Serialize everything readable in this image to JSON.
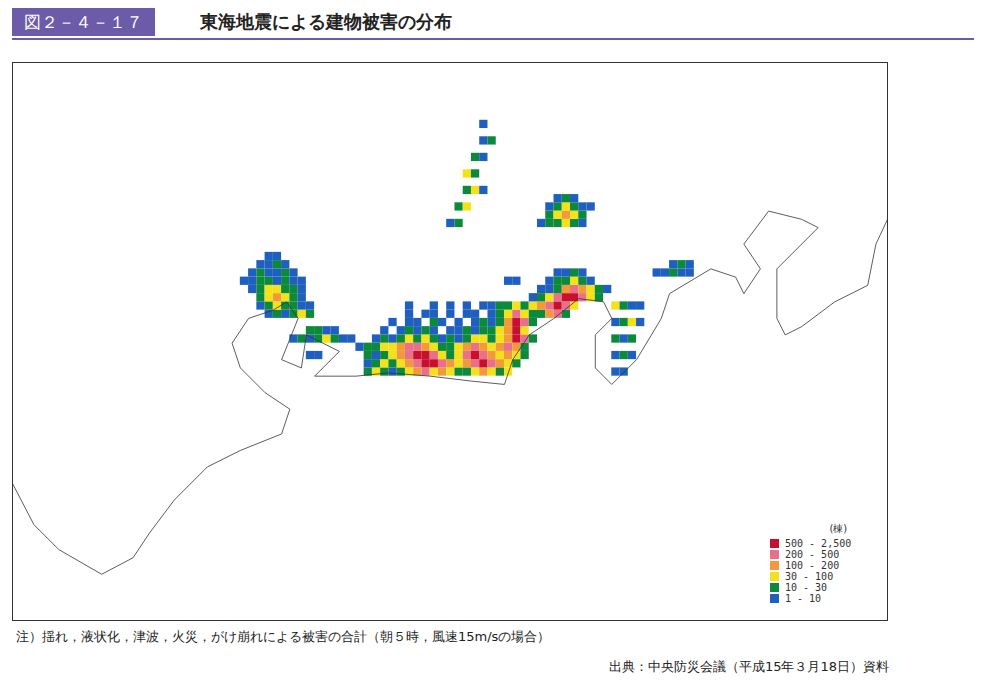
{
  "chart_data": {
    "type": "heatmap",
    "figure_number": "図２－４－１７",
    "title": "東海地震による建物被害の分布",
    "note": "注）揺れ，液状化，津波，火災，がけ崩れによる被害の合計（朝５時，風速15m/sの場合）",
    "source": "出典：中央防災会議（平成15年３月18日）資料",
    "xlim": [
      135.22,
      140.52
    ],
    "ylim": [
      33.17,
      36.55
    ],
    "tick_labels": false,
    "cell_size": 0.05,
    "color_bar": {
      "unit": "(棟)",
      "classes": [
        {
          "min": 500,
          "max": 2500,
          "label": "500 - 2,500",
          "color": "#c8102e"
        },
        {
          "min": 200,
          "max": 500,
          "label": "200 - 500",
          "color": "#e8708a"
        },
        {
          "min": 100,
          "max": 200,
          "label": "100 - 200",
          "color": "#f29a3a"
        },
        {
          "min": 30,
          "max": 100,
          "label": "30 - 100",
          "color": "#f5e11a"
        },
        {
          "min": 10,
          "max": 30,
          "label": "10 - 30",
          "color": "#0a8a3a"
        },
        {
          "min": 1,
          "max": 10,
          "label": "1 - 10",
          "color": "#1f5fbf"
        }
      ]
    },
    "cells": [
      {
        "lat": 34.65,
        "lon": 137.35,
        "values": [
          20,
          60,
          20,
          5,
          20,
          60,
          150,
          300,
          60,
          150,
          60,
          20,
          20,
          60,
          150,
          60,
          20,
          60
        ]
      },
      {
        "lat": 34.7,
        "lon": 137.35,
        "values": [
          5,
          20,
          60,
          20,
          60,
          150,
          300,
          1000,
          1000,
          300,
          150,
          60,
          150,
          300,
          1000,
          300,
          150,
          60,
          20
        ]
      },
      {
        "lat": 34.75,
        "lon": 137.35,
        "values": [
          20,
          5,
          20,
          60,
          150,
          300,
          1000,
          1000,
          300,
          60,
          20,
          60,
          300,
          1000,
          300,
          150,
          60,
          150,
          60,
          20
        ]
      },
      {
        "lat": 34.8,
        "lon": 137.3,
        "values": [
          5,
          20,
          20,
          60,
          60,
          150,
          300,
          300,
          150,
          60,
          20,
          20,
          60,
          150,
          300,
          150,
          60,
          150,
          300,
          150,
          20
        ]
      },
      {
        "lat": 34.85,
        "lon": 137.4,
        "values": [
          5,
          20,
          5,
          20,
          60,
          20,
          60,
          20,
          5,
          20,
          5,
          20,
          60,
          60,
          20,
          60,
          150,
          1000,
          300,
          20
        ]
      },
      {
        "lat": 34.9,
        "lon": 137.45,
        "values": [
          5,
          null,
          5,
          20,
          5,
          20,
          5,
          null,
          5,
          5,
          20,
          5,
          20,
          20,
          60,
          150,
          1000,
          60
        ]
      },
      {
        "lat": 34.95,
        "lon": 137.5,
        "values": [
          5,
          null,
          5,
          5,
          null,
          20,
          5,
          null,
          5,
          null,
          5,
          20,
          5,
          20,
          150,
          1000,
          300,
          20
        ]
      },
      {
        "lat": 35.0,
        "lon": 137.55,
        "values": [
          null,
          5,
          null,
          5,
          5,
          null,
          5,
          null,
          5,
          5,
          null,
          5,
          20,
          60,
          300,
          60,
          20,
          20,
          150,
          300,
          20
        ]
      },
      {
        "lat": 35.05,
        "lon": 137.6,
        "values": [
          5,
          null,
          null,
          5,
          null,
          5,
          null,
          5,
          null,
          5,
          5,
          20,
          20,
          60,
          20,
          60,
          150,
          300,
          1000,
          300,
          60
        ]
      },
      {
        "lat": 35.1,
        "lon": 138.35,
        "values": [
          5,
          20,
          60,
          300,
          1000,
          1000,
          300,
          60,
          20
        ]
      },
      {
        "lat": 35.15,
        "lon": 138.4,
        "values": [
          5,
          5,
          20,
          150,
          300,
          150,
          60,
          20,
          5
        ]
      },
      {
        "lat": 35.2,
        "lon": 138.45,
        "values": [
          5,
          20,
          20,
          60,
          20,
          5
        ]
      },
      {
        "lat": 35.25,
        "lon": 138.5,
        "values": [
          5,
          5,
          20,
          5
        ]
      },
      {
        "lat": 35.2,
        "lon": 138.2,
        "values": [
          5,
          5
        ]
      },
      {
        "lat": 34.65,
        "lon": 138.85,
        "values": [
          5,
          5
        ]
      },
      {
        "lat": 34.75,
        "lon": 138.85,
        "values": [
          5,
          20,
          5
        ]
      },
      {
        "lat": 34.85,
        "lon": 138.85,
        "values": [
          20,
          5,
          20
        ]
      },
      {
        "lat": 34.95,
        "lon": 138.85,
        "values": [
          5,
          20,
          60,
          5
        ]
      },
      {
        "lat": 35.05,
        "lon": 138.85,
        "values": [
          60,
          20,
          5,
          5
        ]
      },
      {
        "lat": 35.25,
        "lon": 139.1,
        "values": [
          5,
          5,
          20,
          5,
          5
        ]
      },
      {
        "lat": 35.3,
        "lon": 139.2,
        "values": [
          5,
          20,
          5
        ]
      },
      {
        "lat": 35.55,
        "lon": 138.4,
        "values": [
          5,
          20,
          20,
          60,
          20,
          5
        ]
      },
      {
        "lat": 35.6,
        "lon": 138.45,
        "values": [
          20,
          60,
          150,
          60,
          20
        ]
      },
      {
        "lat": 35.65,
        "lon": 138.45,
        "values": [
          5,
          20,
          60,
          20,
          5,
          5
        ]
      },
      {
        "lat": 35.7,
        "lon": 138.5,
        "values": [
          5,
          20,
          5
        ]
      },
      {
        "lat": 35.55,
        "lon": 137.85,
        "values": [
          5,
          20
        ]
      },
      {
        "lat": 35.65,
        "lon": 137.9,
        "values": [
          20,
          60
        ]
      },
      {
        "lat": 35.75,
        "lon": 137.95,
        "values": [
          20,
          60,
          5
        ]
      },
      {
        "lat": 35.85,
        "lon": 137.95,
        "values": [
          60,
          20
        ]
      },
      {
        "lat": 35.95,
        "lon": 138.0,
        "values": [
          20,
          5
        ]
      },
      {
        "lat": 36.05,
        "lon": 138.05,
        "values": [
          5,
          20
        ]
      },
      {
        "lat": 36.15,
        "lon": 138.05,
        "values": [
          5
        ]
      },
      {
        "lat": 35.0,
        "lon": 136.75,
        "values": [
          5,
          20,
          5,
          20,
          60,
          20
        ]
      },
      {
        "lat": 35.05,
        "lon": 136.7,
        "values": [
          5,
          20,
          60,
          20,
          20,
          5,
          5
        ]
      },
      {
        "lat": 35.1,
        "lon": 136.7,
        "values": [
          20,
          60,
          150,
          60,
          20,
          5
        ]
      },
      {
        "lat": 35.15,
        "lon": 136.65,
        "values": [
          5,
          20,
          60,
          60,
          20,
          20,
          5
        ]
      },
      {
        "lat": 35.2,
        "lon": 136.6,
        "values": [
          5,
          5,
          20,
          20,
          5,
          20,
          5,
          5
        ]
      },
      {
        "lat": 35.25,
        "lon": 136.65,
        "values": [
          5,
          20,
          5,
          5,
          20,
          5
        ]
      },
      {
        "lat": 35.3,
        "lon": 136.7,
        "values": [
          5,
          5,
          20,
          5
        ]
      },
      {
        "lat": 35.35,
        "lon": 136.75,
        "values": [
          5,
          5
        ]
      },
      {
        "lat": 34.85,
        "lon": 136.9,
        "values": [
          5,
          20,
          5,
          20,
          60,
          20,
          5,
          5
        ]
      },
      {
        "lat": 34.9,
        "lon": 137.0,
        "values": [
          20,
          20,
          5,
          5
        ]
      },
      {
        "lat": 34.75,
        "lon": 137.0,
        "values": [
          5,
          5
        ]
      }
    ],
    "coastline": [
      [
        135.22,
        34.0
      ],
      [
        135.35,
        33.75
      ],
      [
        135.5,
        33.6
      ],
      [
        135.76,
        33.45
      ],
      [
        135.95,
        33.55
      ],
      [
        136.05,
        33.7
      ],
      [
        136.2,
        33.9
      ],
      [
        136.4,
        34.1
      ],
      [
        136.6,
        34.2
      ],
      [
        136.85,
        34.3
      ],
      [
        136.9,
        34.45
      ],
      [
        136.75,
        34.55
      ],
      [
        136.6,
        34.7
      ],
      [
        136.55,
        34.85
      ],
      [
        136.65,
        35.0
      ],
      [
        136.8,
        35.05
      ],
      [
        136.88,
        35.1
      ],
      [
        136.95,
        35.0
      ],
      [
        136.85,
        34.75
      ],
      [
        136.97,
        34.7
      ],
      [
        137.0,
        34.9
      ],
      [
        137.2,
        34.8
      ],
      [
        137.05,
        34.65
      ],
      [
        137.3,
        34.65
      ],
      [
        137.5,
        34.67
      ],
      [
        137.75,
        34.65
      ],
      [
        138.0,
        34.62
      ],
      [
        138.2,
        34.6
      ],
      [
        138.25,
        34.75
      ],
      [
        138.35,
        34.9
      ],
      [
        138.5,
        35.0
      ],
      [
        138.65,
        35.12
      ],
      [
        138.8,
        35.1
      ],
      [
        138.85,
        35.0
      ],
      [
        138.75,
        34.9
      ],
      [
        138.75,
        34.7
      ],
      [
        138.85,
        34.6
      ],
      [
        139.0,
        34.75
      ],
      [
        139.15,
        35.0
      ],
      [
        139.2,
        35.15
      ],
      [
        139.45,
        35.3
      ],
      [
        139.6,
        35.25
      ],
      [
        139.65,
        35.15
      ],
      [
        139.75,
        35.3
      ],
      [
        139.65,
        35.45
      ],
      [
        139.8,
        35.65
      ],
      [
        140.0,
        35.6
      ],
      [
        140.1,
        35.55
      ],
      [
        139.85,
        35.3
      ],
      [
        139.85,
        35.0
      ],
      [
        139.9,
        34.9
      ],
      [
        140.0,
        34.95
      ],
      [
        140.2,
        35.1
      ],
      [
        140.4,
        35.2
      ],
      [
        140.45,
        35.45
      ],
      [
        140.52,
        35.6
      ]
    ]
  }
}
